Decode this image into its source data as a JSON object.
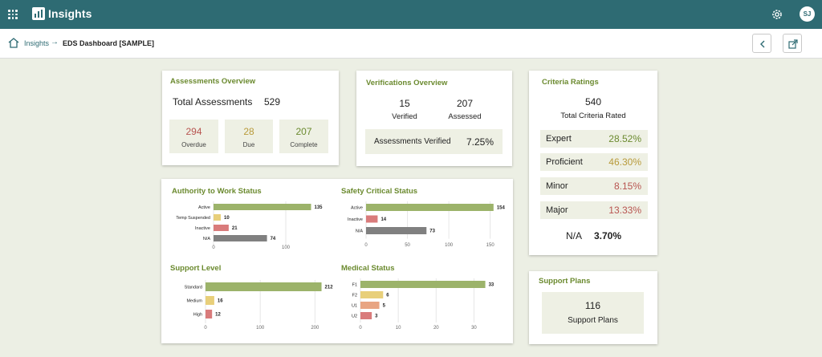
{
  "app": {
    "title": "Insights",
    "user_initials": "SJ"
  },
  "breadcrumb": {
    "root": "Insights",
    "separator": "→",
    "current": "EDS Dashboard [SAMPLE]"
  },
  "assessments": {
    "title": "Assessments Overview",
    "total_label": "Total Assessments",
    "total_value": "529",
    "tiles": [
      {
        "value": "294",
        "label": "Overdue",
        "color": "#b85450"
      },
      {
        "value": "28",
        "label": "Due",
        "color": "#b89a3a"
      },
      {
        "value": "207",
        "label": "Complete",
        "color": "#6b8a2f"
      }
    ]
  },
  "verifications": {
    "title": "Verifications Overview",
    "verified_value": "15",
    "verified_label": "Verified",
    "assessed_value": "207",
    "assessed_label": "Assessed",
    "pct_label": "Assessments Verified",
    "pct_value": "7.25%"
  },
  "criteria": {
    "title": "Criteria Ratings",
    "total_value": "540",
    "total_label": "Total Criteria Rated",
    "ratings": [
      {
        "label": "Expert",
        "value": "28.52%",
        "color": "#6b8a2f"
      },
      {
        "label": "Proficient",
        "value": "46.30%",
        "color": "#b89a3a"
      },
      {
        "label": "Minor",
        "value": "8.15%",
        "color": "#b85450"
      },
      {
        "label": "Major",
        "value": "13.33%",
        "color": "#b85450"
      }
    ],
    "na_label": "N/A",
    "na_value": "3.70%"
  },
  "support_plans": {
    "title": "Support Plans",
    "value": "116",
    "label": "Support Plans"
  },
  "chart_data": [
    {
      "type": "bar",
      "orientation": "horizontal",
      "title": "Authority to Work Status",
      "categories": [
        "Active",
        "Temp Suspended",
        "Inactive",
        "N/A"
      ],
      "values": [
        135,
        10,
        21,
        74
      ],
      "colors": [
        "#9cb36a",
        "#e8cf7a",
        "#d97b7b",
        "#808080"
      ],
      "ticks": [
        0,
        100
      ],
      "xlim": [
        0,
        150
      ],
      "grid": true
    },
    {
      "type": "bar",
      "orientation": "horizontal",
      "title": "Safety Critical Status",
      "categories": [
        "Active",
        "Inactive",
        "N/A"
      ],
      "values": [
        154,
        14,
        73
      ],
      "colors": [
        "#9cb36a",
        "#d97b7b",
        "#808080"
      ],
      "ticks": [
        0,
        50,
        100,
        150
      ],
      "xlim": [
        0,
        160
      ],
      "grid": true
    },
    {
      "type": "bar",
      "orientation": "horizontal",
      "title": "Support Level",
      "categories": [
        "Standard",
        "Medium",
        "High"
      ],
      "values": [
        212,
        16,
        12
      ],
      "colors": [
        "#9cb36a",
        "#e8cf7a",
        "#d97b7b"
      ],
      "ticks": [
        0,
        100,
        200
      ],
      "xlim": [
        0,
        220
      ],
      "grid": true
    },
    {
      "type": "bar",
      "orientation": "horizontal",
      "title": "Medical Status",
      "categories": [
        "F1",
        "F2",
        "U1",
        "U2"
      ],
      "values": [
        33,
        6,
        5,
        3
      ],
      "colors": [
        "#9cb36a",
        "#e8cf7a",
        "#e8a583",
        "#d97b7b"
      ],
      "ticks": [
        0,
        10,
        20,
        30
      ],
      "xlim": [
        0,
        35
      ],
      "grid": true
    }
  ]
}
